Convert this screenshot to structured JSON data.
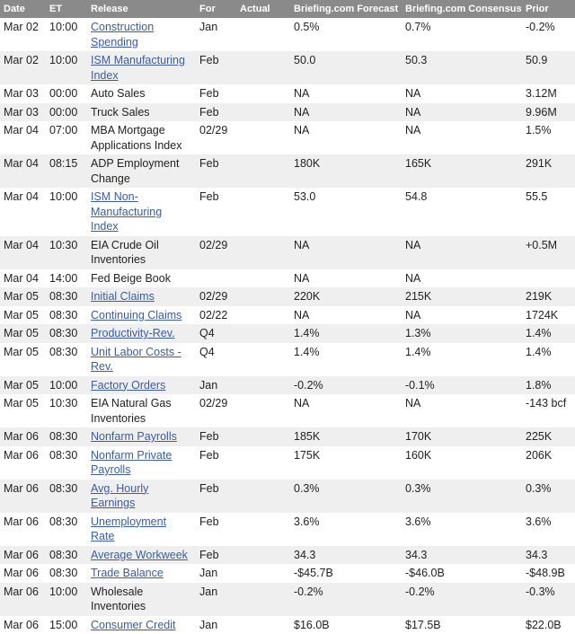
{
  "columns": {
    "date": "Date",
    "et": "ET",
    "release": "Release",
    "for": "For",
    "actual": "Actual",
    "forecast": "Briefing.com Forecast",
    "consensus": "Briefing.com Consensus",
    "prior": "Prior"
  },
  "colors": {
    "header_bg": "#8a8a8a",
    "link": "#3a5da3",
    "row_alt": "#efefef"
  },
  "rows": [
    {
      "date": "Mar 02",
      "et": "10:00",
      "release": "Construction Spending",
      "link": true,
      "for": "Jan",
      "actual": "",
      "forecast": "0.5%",
      "consensus": "0.7%",
      "prior": "-0.2%"
    },
    {
      "date": "Mar 02",
      "et": "10:00",
      "release": "ISM Manufacturing Index",
      "link": true,
      "for": "Feb",
      "actual": "",
      "forecast": "50.0",
      "consensus": "50.3",
      "prior": "50.9"
    },
    {
      "date": "Mar 03",
      "et": "00:00",
      "release": "Auto Sales",
      "link": false,
      "for": "Feb",
      "actual": "",
      "forecast": "NA",
      "consensus": "NA",
      "prior": "3.12M"
    },
    {
      "date": "Mar 03",
      "et": "00:00",
      "release": "Truck Sales",
      "link": false,
      "for": "Feb",
      "actual": "",
      "forecast": "NA",
      "consensus": "NA",
      "prior": "9.96M"
    },
    {
      "date": "Mar 04",
      "et": "07:00",
      "release": "MBA Mortgage Applications Index",
      "link": false,
      "for": "02/29",
      "actual": "",
      "forecast": "NA",
      "consensus": "NA",
      "prior": "1.5%"
    },
    {
      "date": "Mar 04",
      "et": "08:15",
      "release": "ADP Employment Change",
      "link": false,
      "for": "Feb",
      "actual": "",
      "forecast": "180K",
      "consensus": "165K",
      "prior": "291K"
    },
    {
      "date": "Mar 04",
      "et": "10:00",
      "release": "ISM Non-Manufacturing Index",
      "link": true,
      "for": "Feb",
      "actual": "",
      "forecast": "53.0",
      "consensus": "54.8",
      "prior": "55.5"
    },
    {
      "date": "Mar 04",
      "et": "10:30",
      "release": "EIA Crude Oil Inventories",
      "link": false,
      "for": "02/29",
      "actual": "",
      "forecast": "NA",
      "consensus": "NA",
      "prior": "+0.5M"
    },
    {
      "date": "Mar 04",
      "et": "14:00",
      "release": "Fed Beige Book",
      "link": false,
      "for": "",
      "actual": "",
      "forecast": "NA",
      "consensus": "NA",
      "prior": ""
    },
    {
      "date": "Mar 05",
      "et": "08:30",
      "release": "Initial Claims",
      "link": true,
      "for": "02/29",
      "actual": "",
      "forecast": "220K",
      "consensus": "215K",
      "prior": "219K"
    },
    {
      "date": "Mar 05",
      "et": "08:30",
      "release": "Continuing Claims",
      "link": true,
      "for": "02/22",
      "actual": "",
      "forecast": "NA",
      "consensus": "NA",
      "prior": "1724K"
    },
    {
      "date": "Mar 05",
      "et": "08:30",
      "release": "Productivity-Rev.",
      "link": true,
      "for": "Q4",
      "actual": "",
      "forecast": "1.4%",
      "consensus": "1.3%",
      "prior": "1.4%"
    },
    {
      "date": "Mar 05",
      "et": "08:30",
      "release": "Unit Labor Costs - Rev.",
      "link": true,
      "for": "Q4",
      "actual": "",
      "forecast": "1.4%",
      "consensus": "1.4%",
      "prior": "1.4%"
    },
    {
      "date": "Mar 05",
      "et": "10:00",
      "release": "Factory Orders",
      "link": true,
      "for": "Jan",
      "actual": "",
      "forecast": "-0.2%",
      "consensus": "-0.1%",
      "prior": "1.8%"
    },
    {
      "date": "Mar 05",
      "et": "10:30",
      "release": "EIA Natural Gas Inventories",
      "link": false,
      "for": "02/29",
      "actual": "",
      "forecast": "NA",
      "consensus": "NA",
      "prior": "-143 bcf"
    },
    {
      "date": "Mar 06",
      "et": "08:30",
      "release": "Nonfarm Payrolls",
      "link": true,
      "for": "Feb",
      "actual": "",
      "forecast": "185K",
      "consensus": "170K",
      "prior": "225K"
    },
    {
      "date": "Mar 06",
      "et": "08:30",
      "release": "Nonfarm Private Payrolls",
      "link": true,
      "for": "Feb",
      "actual": "",
      "forecast": "175K",
      "consensus": "160K",
      "prior": "206K"
    },
    {
      "date": "Mar 06",
      "et": "08:30",
      "release": "Avg. Hourly Earnings",
      "link": true,
      "for": "Feb",
      "actual": "",
      "forecast": "0.3%",
      "consensus": "0.3%",
      "prior": "0.3%"
    },
    {
      "date": "Mar 06",
      "et": "08:30",
      "release": "Unemployment Rate",
      "link": true,
      "for": "Feb",
      "actual": "",
      "forecast": "3.6%",
      "consensus": "3.6%",
      "prior": "3.6%"
    },
    {
      "date": "Mar 06",
      "et": "08:30",
      "release": "Average Workweek",
      "link": true,
      "for": "Feb",
      "actual": "",
      "forecast": "34.3",
      "consensus": "34.3",
      "prior": "34.3"
    },
    {
      "date": "Mar 06",
      "et": "08:30",
      "release": "Trade Balance",
      "link": true,
      "for": "Jan",
      "actual": "",
      "forecast": "-$45.7B",
      "consensus": "-$46.0B",
      "prior": "-$48.9B"
    },
    {
      "date": "Mar 06",
      "et": "10:00",
      "release": "Wholesale Inventories",
      "link": false,
      "for": "Jan",
      "actual": "",
      "forecast": "-0.2%",
      "consensus": "-0.2%",
      "prior": "-0.3%"
    },
    {
      "date": "Mar 06",
      "et": "15:00",
      "release": "Consumer Credit",
      "link": true,
      "for": "Jan",
      "actual": "",
      "forecast": "$16.0B",
      "consensus": "$17.5B",
      "prior": "$22.0B"
    }
  ]
}
